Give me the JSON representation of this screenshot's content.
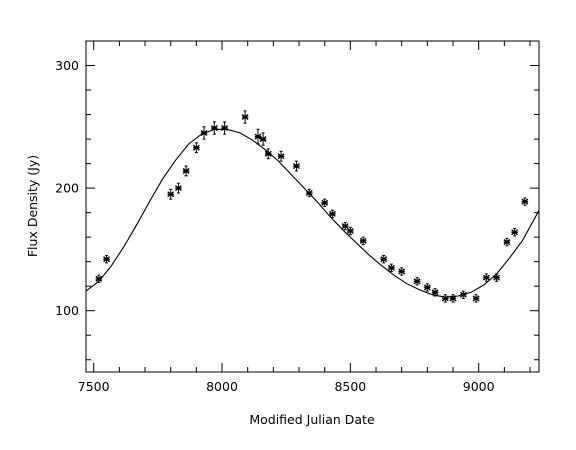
{
  "chart_data": {
    "type": "scatter",
    "title": "",
    "xlabel": "Modified Julian Date",
    "ylabel": "Flux Density (Jy)",
    "xlim": [
      7470,
      9235
    ],
    "ylim": [
      50,
      320
    ],
    "x_ticks": [
      7500,
      8000,
      8500,
      9000
    ],
    "y_ticks": [
      100,
      200,
      300
    ],
    "x_tick_labels": [
      "7500",
      "8000",
      "8500",
      "9000"
    ],
    "y_tick_labels": [
      "100",
      "200",
      "300"
    ],
    "grid": false,
    "legend": "none",
    "series": [
      {
        "kind": "points_with_errorbars",
        "x": [
          7520,
          7550,
          7800,
          7830,
          7860,
          7900,
          7930,
          7970,
          8010,
          8090,
          8140,
          8160,
          8180,
          8230,
          8290,
          8340,
          8400,
          8430,
          8480,
          8500,
          8550,
          8630,
          8660,
          8700,
          8760,
          8800,
          8830,
          8870,
          8900,
          8940,
          8990,
          9030,
          9070,
          9110,
          9140,
          9180
        ],
        "y": [
          126,
          142,
          195,
          200,
          214,
          233,
          245,
          249,
          249,
          258,
          242,
          240,
          228,
          226,
          218,
          196,
          188,
          179,
          169,
          165,
          157,
          142,
          135,
          132,
          124,
          119,
          115,
          110,
          110,
          113,
          110,
          127,
          127,
          156,
          164,
          189
        ],
        "yerr": [
          3,
          3,
          4,
          4,
          4,
          4,
          5,
          5,
          5,
          5,
          6,
          5,
          4,
          4,
          4,
          3,
          3,
          3,
          3,
          3,
          3,
          3,
          3,
          3,
          3,
          3,
          3,
          3,
          3,
          3,
          3,
          3,
          3,
          3,
          3,
          3
        ]
      },
      {
        "kind": "fit_curve",
        "x": [
          7470,
          7520,
          7570,
          7620,
          7670,
          7720,
          7770,
          7820,
          7870,
          7920,
          7970,
          8020,
          8070,
          8120,
          8170,
          8220,
          8270,
          8320,
          8370,
          8420,
          8470,
          8520,
          8570,
          8620,
          8670,
          8720,
          8770,
          8820,
          8870,
          8920,
          8970,
          9020,
          9070,
          9120,
          9170,
          9220,
          9235
        ],
        "y": [
          116,
          124,
          137,
          153,
          171,
          190,
          208,
          223,
          236,
          244,
          248,
          248,
          245,
          239,
          231,
          222,
          211,
          200,
          189,
          177,
          166,
          156,
          146,
          137,
          129,
          122,
          117,
          113,
          111,
          112,
          115,
          121,
          130,
          143,
          157,
          176,
          182
        ]
      }
    ]
  }
}
